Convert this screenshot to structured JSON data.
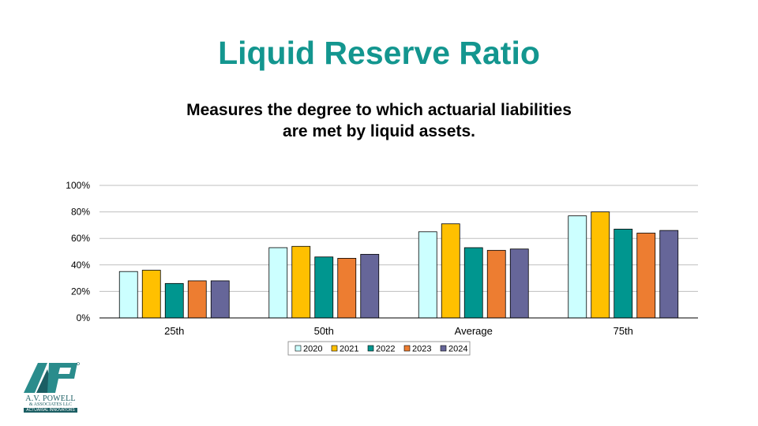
{
  "page": {
    "title": "Liquid Reserve Ratio",
    "subtitle_line1": "Measures the degree to which actuarial liabilities",
    "subtitle_line2": "are met by liquid assets."
  },
  "logo": {
    "name": "A.V. POWELL",
    "sub": "& ASSOCIATES LLC",
    "tagline": "ACTUARIAL INNOVATORS",
    "mark": "AVP",
    "colors": {
      "primary": "#2a8c8c",
      "dark": "#1b5e63"
    }
  },
  "chart_data": {
    "type": "bar",
    "categories": [
      "25th",
      "50th",
      "Average",
      "75th"
    ],
    "series": [
      {
        "name": "2020",
        "color": "#ccffff",
        "values": [
          35,
          53,
          65,
          77
        ]
      },
      {
        "name": "2021",
        "color": "#ffc000",
        "values": [
          36,
          54,
          71,
          80
        ]
      },
      {
        "name": "2022",
        "color": "#00968f",
        "values": [
          26,
          46,
          53,
          67
        ]
      },
      {
        "name": "2023",
        "color": "#ed7d31",
        "values": [
          28,
          45,
          51,
          64
        ]
      },
      {
        "name": "2024",
        "color": "#666699",
        "values": [
          28,
          48,
          52,
          66
        ]
      }
    ],
    "y_ticks": [
      "0%",
      "20%",
      "40%",
      "60%",
      "80%",
      "100%"
    ],
    "ylim": [
      0,
      100
    ],
    "grid": true,
    "legend": "bottom",
    "title": "",
    "xlabel": "",
    "ylabel": ""
  }
}
